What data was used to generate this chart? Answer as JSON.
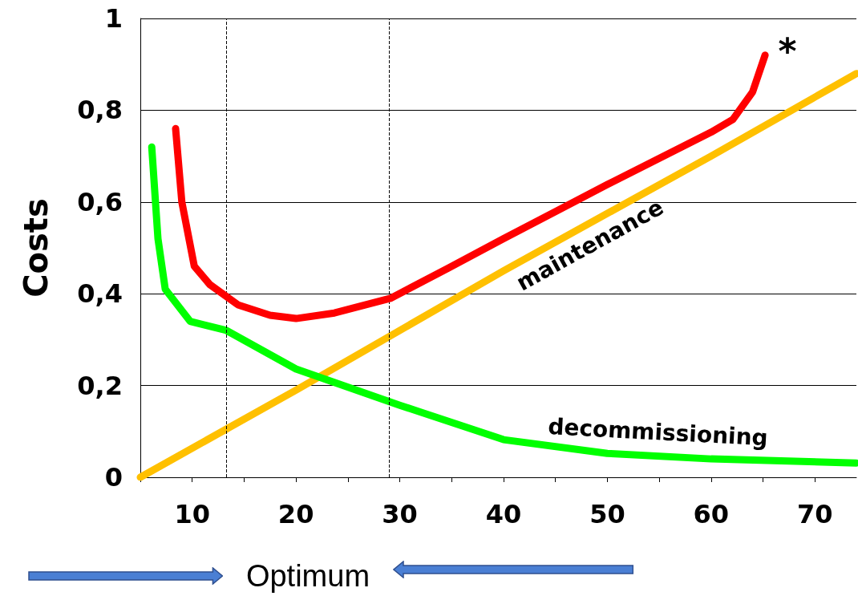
{
  "chart_data": {
    "type": "line",
    "ylabel": "Costs",
    "xlim": [
      5,
      74
    ],
    "xticks": [
      {
        "value": 5,
        "label": null
      },
      10,
      {
        "value": 15,
        "label": null
      },
      20,
      {
        "value": 25,
        "label": null
      },
      30,
      {
        "value": 35,
        "label": null
      },
      40,
      {
        "value": 45,
        "label": null
      },
      50,
      {
        "value": 55,
        "label": null
      },
      60,
      {
        "value": 65,
        "label": null
      },
      70
    ],
    "ylim": [
      0,
      1
    ],
    "yticks": [
      0,
      {
        "value": 0.2,
        "label": "0,2"
      },
      {
        "value": 0.4,
        "label": "0,4"
      },
      {
        "value": 0.6,
        "label": "0,6"
      },
      {
        "value": 0.8,
        "label": "0,8"
      },
      1
    ],
    "grid": "y",
    "line_style": "solid",
    "series": [
      {
        "name": "maintenance",
        "color": "#ffc000",
        "x": [
          5,
          20,
          40,
          60,
          74
        ],
        "values": [
          0,
          0.19,
          0.45,
          0.7,
          0.88
        ]
      },
      {
        "name": "decommissioning",
        "color": "#00ff00",
        "x": [
          6.1,
          6.7,
          7.4,
          9.8,
          13.3,
          20,
          30,
          40,
          50,
          60,
          74
        ],
        "values": [
          0.72,
          0.52,
          0.41,
          0.34,
          0.32,
          0.236,
          0.157,
          0.082,
          0.052,
          0.04,
          0.031
        ]
      },
      {
        "color": "#ff0000",
        "x": [
          8.4,
          9,
          10.2,
          11.7,
          14.4,
          17.5,
          20,
          23.7,
          29.1,
          34.6,
          40,
          50,
          60,
          62.1,
          64,
          65.2
        ],
        "values": [
          0.76,
          0.6,
          0.46,
          0.42,
          0.376,
          0.353,
          0.346,
          0.358,
          0.39,
          0.455,
          0.52,
          0.638,
          0.752,
          0.78,
          0.84,
          0.92
        ]
      }
    ],
    "ref_lines": [
      {
        "axis": "x",
        "value": 13.3,
        "color": "#000000",
        "line_style": "dashed"
      },
      {
        "axis": "x",
        "value": 29,
        "color": "#000000",
        "line_style": "dashed"
      }
    ],
    "annotations": [
      "*",
      "Optimum"
    ]
  }
}
